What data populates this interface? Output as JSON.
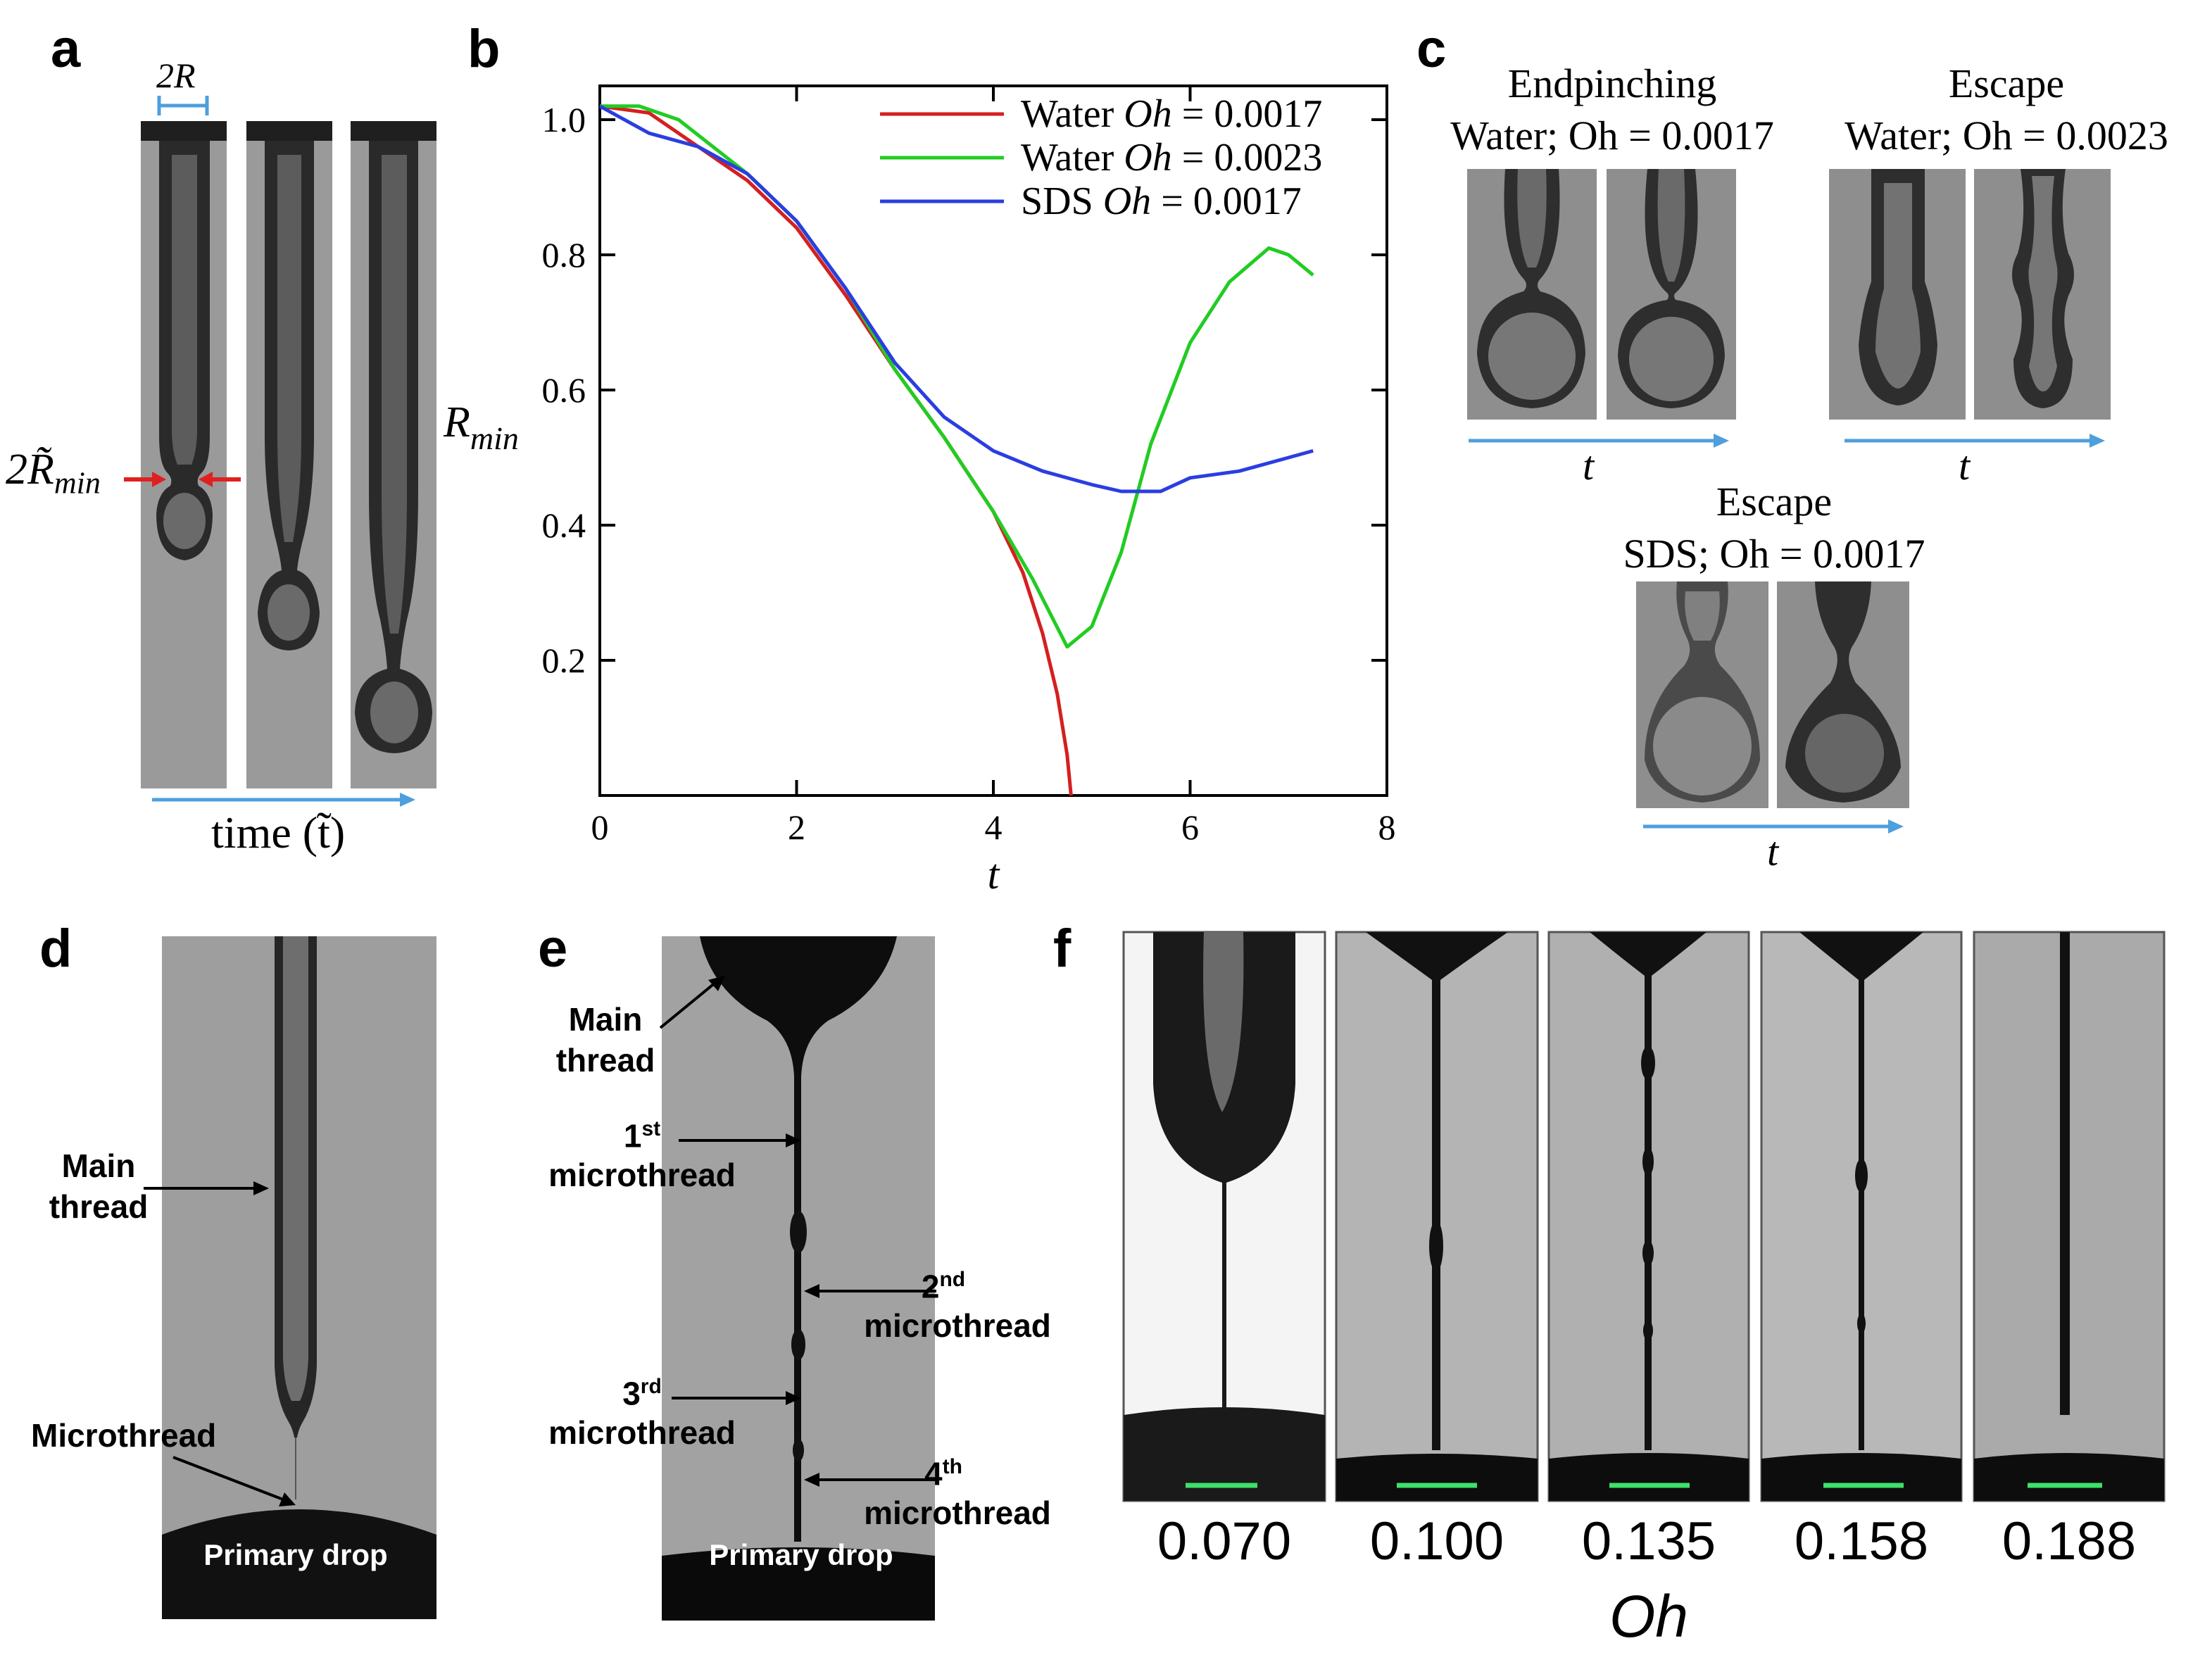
{
  "panels": {
    "a": {
      "label": "a",
      "width_label": "2R",
      "rmin_label": "2R̃",
      "rmin_sub": "min",
      "time_label": "time (t̃)"
    },
    "b": {
      "label": "b"
    },
    "c": {
      "label": "c",
      "groups": [
        {
          "title": "Endpinching",
          "subtitle": "Water; Oh = 0.0017",
          "axis": "t"
        },
        {
          "title": "Escape",
          "subtitle": "Water; Oh = 0.0023",
          "axis": "t"
        },
        {
          "title": "Escape",
          "subtitle": "SDS; Oh = 0.0017",
          "axis": "t"
        }
      ]
    },
    "d": {
      "label": "d",
      "main_thread": "Main thread",
      "microthread": "Microthread",
      "primary_drop": "Primary drop"
    },
    "e": {
      "label": "e",
      "main_thread": "Main thread",
      "micro1_sup": "st",
      "micro1_num": "1",
      "micro2_sup": "nd",
      "micro2_num": "2",
      "micro3_sup": "rd",
      "micro3_num": "3",
      "micro4_sup": "th",
      "micro4_num": "4",
      "microthread": "microthread",
      "primary_drop": "Primary drop"
    },
    "f": {
      "label": "f",
      "oh_values": [
        "0.070",
        "0.100",
        "0.135",
        "0.158",
        "0.188"
      ],
      "axis_label": "Oh"
    }
  },
  "colors": {
    "water_0017": "#d42020",
    "water_0023": "#22cc22",
    "sds_0017": "#2a3ee0",
    "arrow_blue": "#4e9fdc",
    "scale_bar": "#3ee06a"
  },
  "chart_data": {
    "type": "line",
    "xlabel": "t",
    "ylabel": "R_min",
    "xlim": [
      0,
      8
    ],
    "ylim": [
      0,
      1.05
    ],
    "xticks": [
      0,
      2,
      4,
      6,
      8
    ],
    "yticks": [
      0.2,
      0.4,
      0.6,
      0.8,
      1.0
    ],
    "x_tick_labels": [
      "0",
      "2",
      "4",
      "6",
      "8"
    ],
    "y_tick_labels": [
      "0.2",
      "0.4",
      "0.6",
      "0.8",
      "1.0"
    ],
    "legend_position": "top-right",
    "series": [
      {
        "name": "Water Oh = 0.0017",
        "fluid": "Water",
        "oh": "0.0017",
        "x": [
          0,
          0.5,
          1.0,
          1.5,
          2.0,
          2.5,
          3.0,
          3.5,
          4.0,
          4.3,
          4.5,
          4.65,
          4.75,
          4.79
        ],
        "y": [
          1.02,
          1.01,
          0.96,
          0.91,
          0.84,
          0.74,
          0.63,
          0.53,
          0.42,
          0.33,
          0.24,
          0.15,
          0.06,
          0.0
        ]
      },
      {
        "name": "Water Oh = 0.0023",
        "fluid": "Water",
        "oh": "0.0023",
        "x": [
          0,
          0.4,
          0.8,
          1.5,
          2.0,
          2.5,
          3.0,
          3.5,
          4.0,
          4.4,
          4.75,
          5.0,
          5.3,
          5.6,
          6.0,
          6.4,
          6.8,
          7.0,
          7.25
        ],
        "y": [
          1.02,
          1.02,
          1.0,
          0.92,
          0.85,
          0.75,
          0.63,
          0.53,
          0.42,
          0.32,
          0.22,
          0.25,
          0.36,
          0.52,
          0.67,
          0.76,
          0.81,
          0.8,
          0.77
        ]
      },
      {
        "name": "SDS Oh = 0.0017",
        "fluid": "SDS",
        "oh": "0.0017",
        "x": [
          0,
          0.5,
          1.0,
          1.5,
          2.0,
          2.5,
          3.0,
          3.5,
          4.0,
          4.5,
          5.0,
          5.3,
          5.7,
          6.0,
          6.5,
          7.0,
          7.25
        ],
        "y": [
          1.02,
          0.98,
          0.96,
          0.92,
          0.85,
          0.75,
          0.64,
          0.56,
          0.51,
          0.48,
          0.46,
          0.45,
          0.45,
          0.47,
          0.48,
          0.5,
          0.51
        ]
      }
    ]
  }
}
